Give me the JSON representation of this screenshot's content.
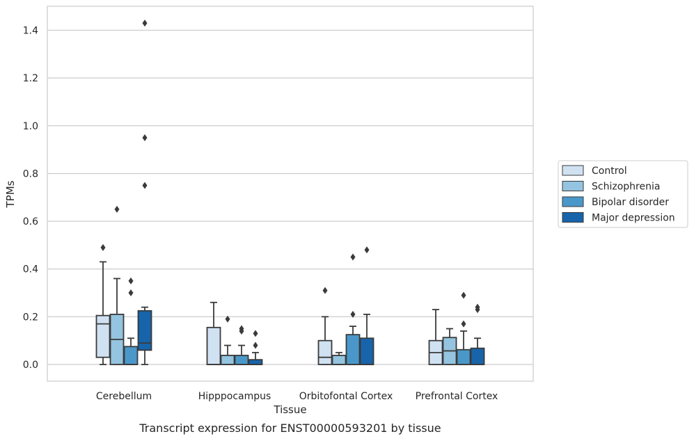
{
  "chart_data": {
    "type": "box",
    "caption": "Transcript expression for ENST00000593201 by tissue",
    "xlabel": "Tissue",
    "ylabel": "TPMs",
    "ylim": [
      -0.07,
      1.5
    ],
    "yticks": [
      0.0,
      0.2,
      0.4,
      0.6,
      0.8,
      1.0,
      1.2,
      1.4
    ],
    "ytick_labels": [
      "0.0",
      "0.2",
      "0.4",
      "0.6",
      "0.8",
      "1.0",
      "1.2",
      "1.4"
    ],
    "grid": true,
    "legend_position": "right",
    "categories": [
      "Cerebellum",
      "Hipppocampus",
      "Orbitofontal Cortex",
      "Prefrontal Cortex"
    ],
    "series": [
      {
        "name": "Control",
        "color": "#d0e1f2",
        "boxes": [
          {
            "whislo": 0.0,
            "q1": 0.03,
            "med": 0.17,
            "q3": 0.205,
            "whishi": 0.43,
            "fliers": [
              0.49
            ]
          },
          {
            "whislo": 0.0,
            "q1": 0.0,
            "med": 0.0,
            "q3": 0.155,
            "whishi": 0.26,
            "fliers": []
          },
          {
            "whislo": 0.0,
            "q1": 0.0,
            "med": 0.03,
            "q3": 0.1,
            "whishi": 0.2,
            "fliers": [
              0.31
            ]
          },
          {
            "whislo": 0.0,
            "q1": 0.0,
            "med": 0.05,
            "q3": 0.1,
            "whishi": 0.23,
            "fliers": []
          }
        ]
      },
      {
        "name": "Schizophrenia",
        "color": "#94c4df",
        "boxes": [
          {
            "whislo": 0.0,
            "q1": 0.0,
            "med": 0.105,
            "q3": 0.21,
            "whishi": 0.36,
            "fliers": [
              0.65
            ]
          },
          {
            "whislo": 0.0,
            "q1": 0.0,
            "med": 0.0,
            "q3": 0.038,
            "whishi": 0.08,
            "fliers": [
              0.19
            ]
          },
          {
            "whislo": 0.0,
            "q1": 0.0,
            "med": 0.0,
            "q3": 0.038,
            "whishi": 0.05,
            "fliers": []
          },
          {
            "whislo": 0.0,
            "q1": 0.0,
            "med": 0.057,
            "q3": 0.113,
            "whishi": 0.15,
            "fliers": []
          }
        ]
      },
      {
        "name": "Bipolar disorder",
        "color": "#4a98c9",
        "boxes": [
          {
            "whislo": 0.0,
            "q1": 0.0,
            "med": 0.0,
            "q3": 0.075,
            "whishi": 0.11,
            "fliers": [
              0.3,
              0.35
            ]
          },
          {
            "whislo": 0.0,
            "q1": 0.0,
            "med": 0.0,
            "q3": 0.038,
            "whishi": 0.08,
            "fliers": [
              0.14,
              0.15
            ]
          },
          {
            "whislo": 0.0,
            "q1": 0.0,
            "med": 0.0,
            "q3": 0.125,
            "whishi": 0.16,
            "fliers": [
              0.21,
              0.45
            ]
          },
          {
            "whislo": 0.0,
            "q1": 0.0,
            "med": 0.0,
            "q3": 0.062,
            "whishi": 0.14,
            "fliers": [
              0.17,
              0.29
            ]
          }
        ]
      },
      {
        "name": "Major depression",
        "color": "#1764ab",
        "boxes": [
          {
            "whislo": 0.0,
            "q1": 0.06,
            "med": 0.09,
            "q3": 0.225,
            "whishi": 0.24,
            "fliers": [
              0.75,
              0.95,
              1.43
            ]
          },
          {
            "whislo": 0.0,
            "q1": 0.0,
            "med": 0.0,
            "q3": 0.02,
            "whishi": 0.05,
            "fliers": [
              0.08,
              0.13
            ]
          },
          {
            "whislo": 0.0,
            "q1": 0.0,
            "med": 0.0,
            "q3": 0.11,
            "whishi": 0.21,
            "fliers": [
              0.48
            ]
          },
          {
            "whislo": 0.0,
            "q1": 0.0,
            "med": 0.0,
            "q3": 0.068,
            "whishi": 0.11,
            "fliers": [
              0.23,
              0.24
            ]
          }
        ]
      }
    ]
  }
}
